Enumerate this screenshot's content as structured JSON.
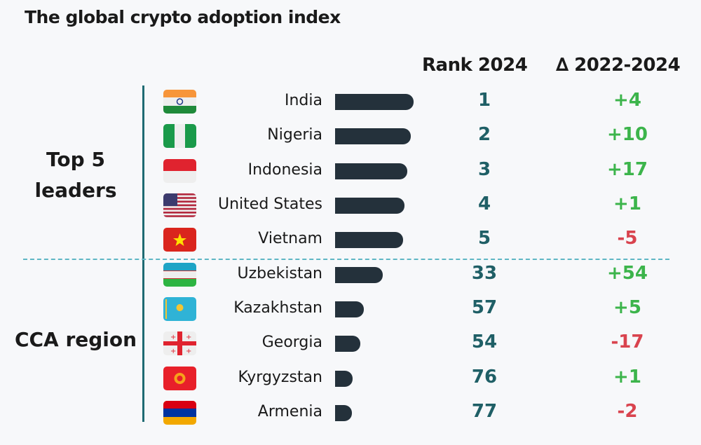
{
  "title": "The global crypto adoption index",
  "colors": {
    "rank": "#1f5f66",
    "positive": "#3cb44b",
    "negative": "#d9434e",
    "bar": "#24313b",
    "divider": "#1f6b73"
  },
  "chart_data": {
    "type": "bar",
    "orientation": "horizontal",
    "title": "The global crypto adoption index",
    "columns": [
      "Rank 2024",
      "∆ 2022-2024"
    ],
    "groups": [
      {
        "label": "Top 5 leaders",
        "rows": [
          0,
          1,
          2,
          3,
          4
        ]
      },
      {
        "label": "CCA region",
        "rows": [
          5,
          6,
          7,
          8,
          9
        ]
      }
    ],
    "rows": [
      {
        "country": "India",
        "flag": "in",
        "bar_relative": 1.0,
        "rank": "1",
        "delta": "+4"
      },
      {
        "country": "Nigeria",
        "flag": "ng",
        "bar_relative": 0.96,
        "rank": "2",
        "delta": "+10"
      },
      {
        "country": "Indonesia",
        "flag": "id",
        "bar_relative": 0.92,
        "rank": "3",
        "delta": "+17"
      },
      {
        "country": "United States",
        "flag": "us",
        "bar_relative": 0.88,
        "rank": "4",
        "delta": "+1"
      },
      {
        "country": "Vietnam",
        "flag": "vn",
        "bar_relative": 0.87,
        "rank": "5",
        "delta": "-5"
      },
      {
        "country": "Uzbekistan",
        "flag": "uz",
        "bar_relative": 0.61,
        "rank": "33",
        "delta": "+54"
      },
      {
        "country": "Kazakhstan",
        "flag": "kz",
        "bar_relative": 0.37,
        "rank": "57",
        "delta": "+5"
      },
      {
        "country": "Georgia",
        "flag": "ge",
        "bar_relative": 0.32,
        "rank": "54",
        "delta": "-17"
      },
      {
        "country": "Kyrgyzstan",
        "flag": "kg",
        "bar_relative": 0.22,
        "rank": "76",
        "delta": "+1"
      },
      {
        "country": "Armenia",
        "flag": "am",
        "bar_relative": 0.21,
        "rank": "77",
        "delta": "-2"
      }
    ]
  }
}
